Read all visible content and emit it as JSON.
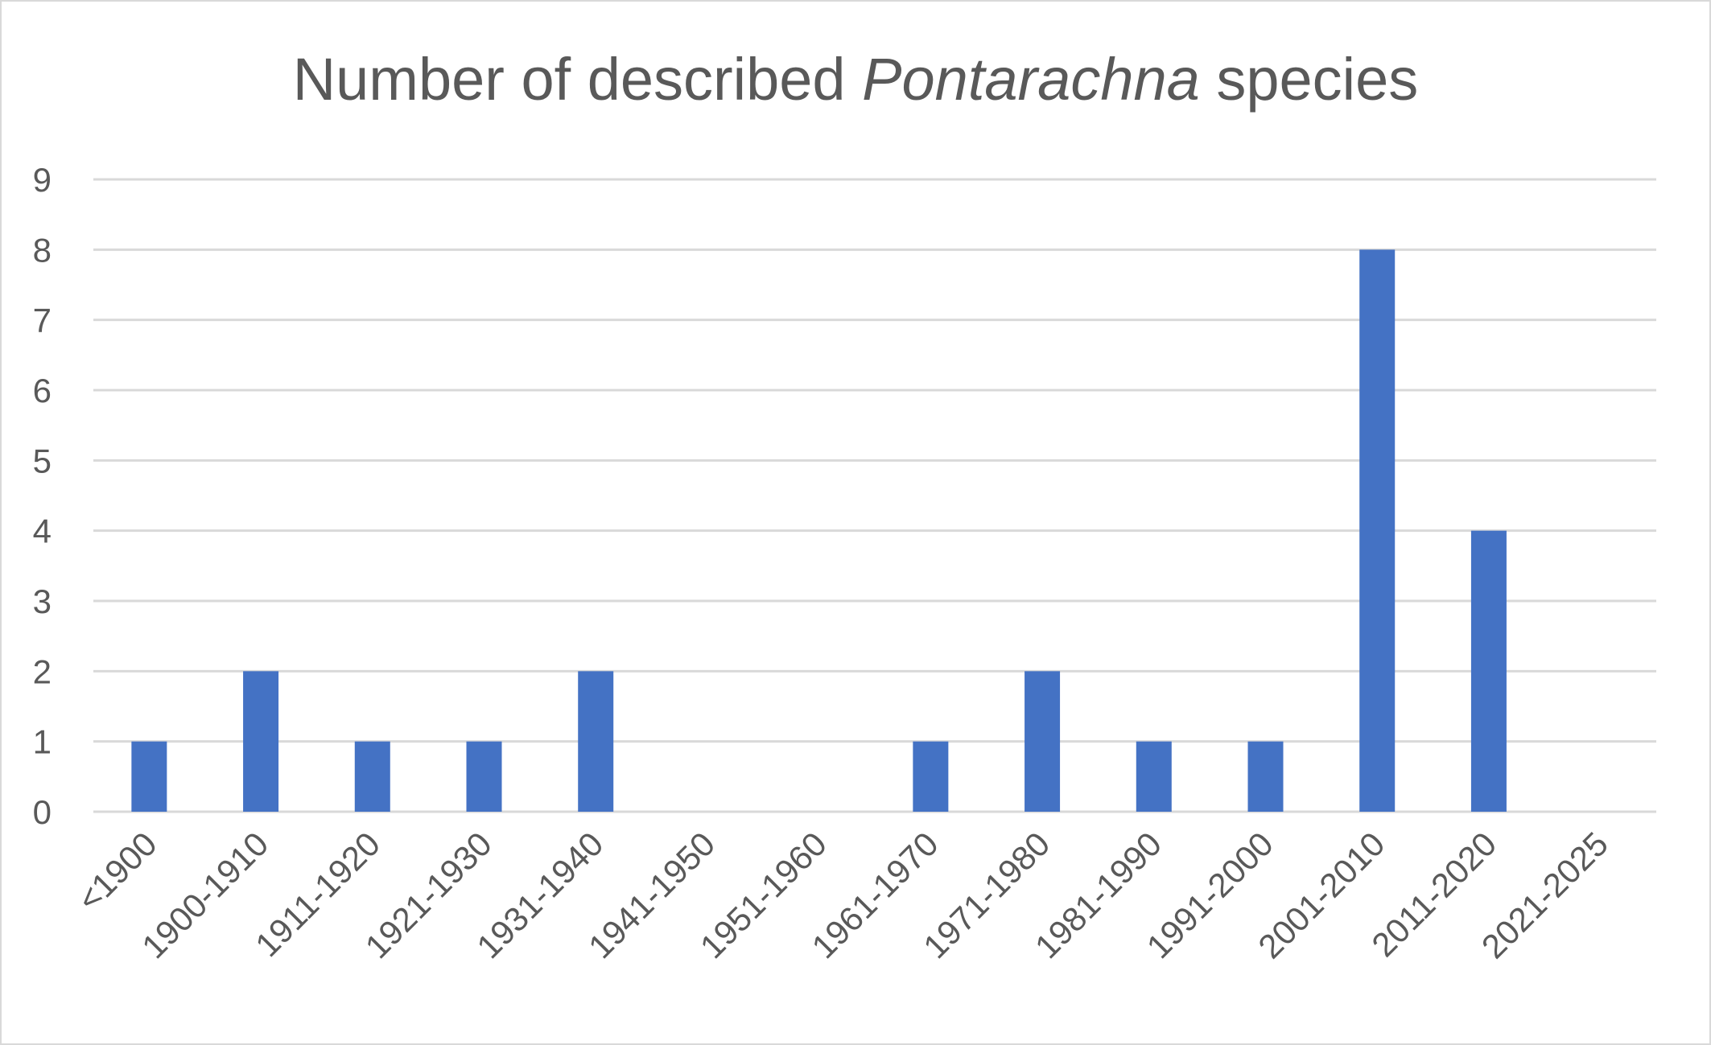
{
  "chart_data": {
    "type": "bar",
    "title_prefix": "Number of described ",
    "title_italic": "Pontarachna",
    "title_suffix": " species",
    "xlabel": "",
    "ylabel": "",
    "categories": [
      "<1900",
      "1900-1910",
      "1911-1920",
      "1921-1930",
      "1931-1940",
      "1941-1950",
      "1951-1960",
      "1961-1970",
      "1971-1980",
      "1981-1990",
      "1991-2000",
      "2001-2010",
      "2011-2020",
      "2021-2025"
    ],
    "values": [
      1,
      2,
      1,
      1,
      2,
      0,
      0,
      1,
      2,
      1,
      1,
      8,
      4,
      0
    ],
    "ylim": [
      0,
      9
    ],
    "yticks": [
      "0",
      "1",
      "2",
      "3",
      "4",
      "5",
      "6",
      "7",
      "8",
      "9"
    ],
    "grid": true,
    "legend": "none",
    "bar_color": "#4472c4",
    "grid_color": "#d9d9d9",
    "text_color": "#595959"
  }
}
